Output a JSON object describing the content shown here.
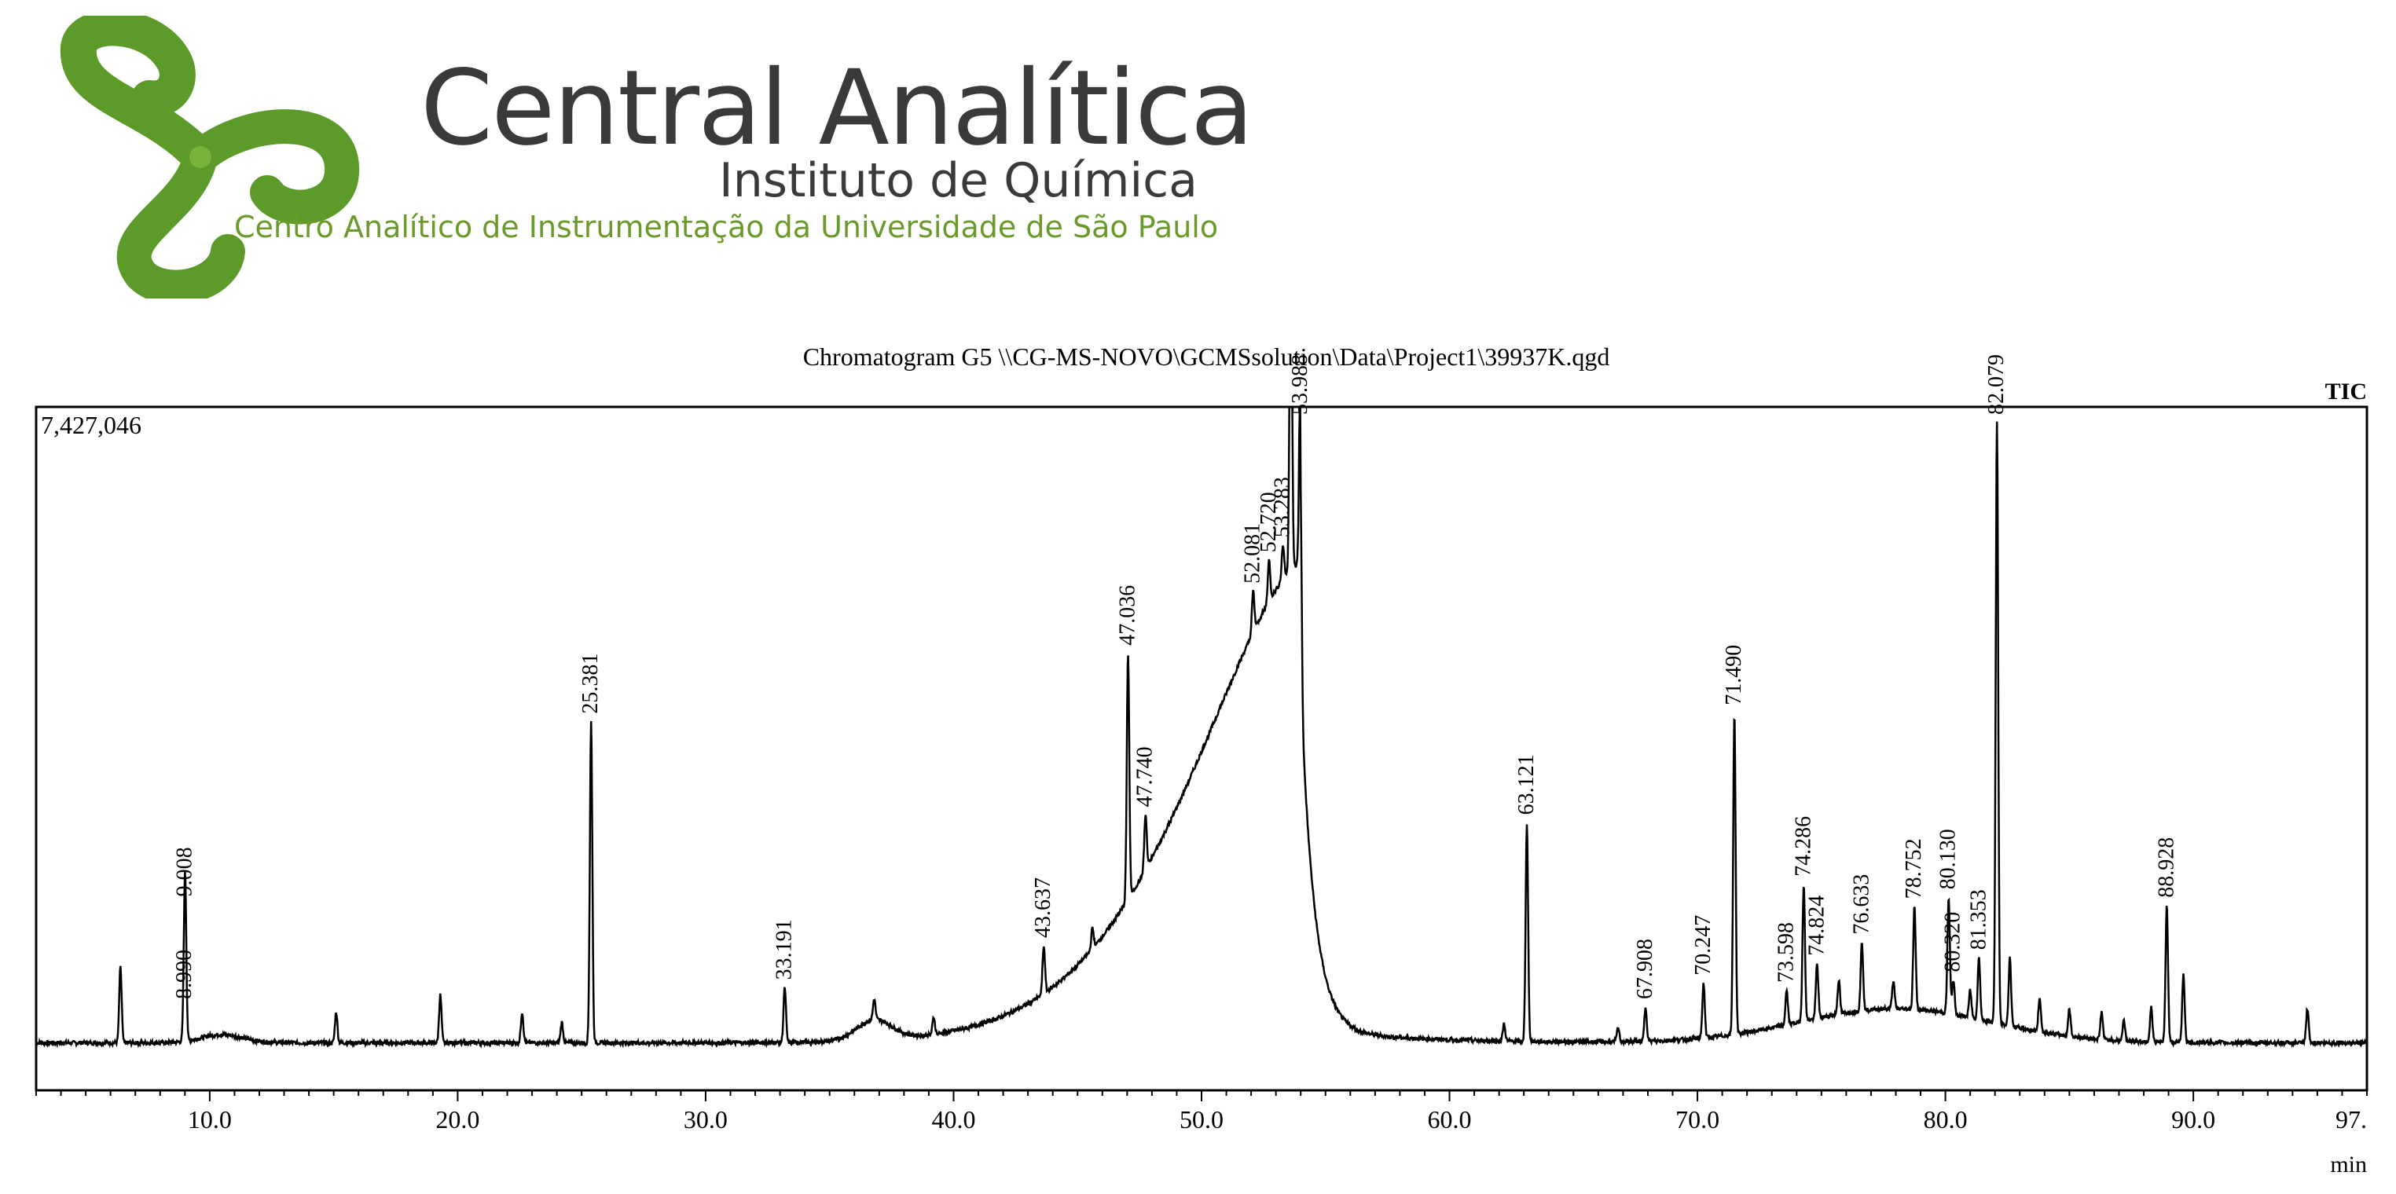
{
  "brand": {
    "name": "Central Analítica",
    "institute": "Instituto de Química",
    "tagline": "Centro Analítico de Instrumentação da Universidade de São Paulo",
    "color_green": "#5c9a2a",
    "color_text": "#3a3a3a"
  },
  "chart_data": {
    "type": "line",
    "title": "Chromatogram G5 \\\\CG-MS-NOVO\\GCMSsolution\\Data\\Project1\\39937K.qgd",
    "trace_label": "TIC",
    "max_intensity_label": "7,427,046",
    "xlabel": "min",
    "xlim": [
      3,
      97
    ],
    "ylim": [
      0,
      7427046
    ],
    "x_ticks": [
      {
        "value": 10,
        "label": "10.0"
      },
      {
        "value": 20,
        "label": "20.0"
      },
      {
        "value": 30,
        "label": "30.0"
      },
      {
        "value": 40,
        "label": "40.0"
      },
      {
        "value": 50,
        "label": "50.0"
      },
      {
        "value": 60,
        "label": "60.0"
      },
      {
        "value": 70,
        "label": "70.0"
      },
      {
        "value": 80,
        "label": "80.0"
      },
      {
        "value": 90,
        "label": "90.0"
      },
      {
        "value": 97,
        "label": "97."
      }
    ],
    "peaks": [
      {
        "rt": 6.4,
        "label": "",
        "height": 0.11
      },
      {
        "rt": 8.99,
        "label": "8.990",
        "height": 0.05
      },
      {
        "rt": 9.008,
        "label": "9.008",
        "height": 0.2
      },
      {
        "rt": 15.1,
        "label": "",
        "height": 0.045
      },
      {
        "rt": 19.3,
        "label": "",
        "height": 0.07
      },
      {
        "rt": 22.6,
        "label": "",
        "height": 0.045
      },
      {
        "rt": 24.2,
        "label": "",
        "height": 0.03
      },
      {
        "rt": 25.381,
        "label": "25.381",
        "height": 0.47
      },
      {
        "rt": 33.191,
        "label": "33.191",
        "height": 0.08
      },
      {
        "rt": 36.8,
        "label": "",
        "height": 0.03
      },
      {
        "rt": 39.2,
        "label": "",
        "height": 0.025
      },
      {
        "rt": 43.637,
        "label": "43.637",
        "height": 0.07
      },
      {
        "rt": 45.6,
        "label": "",
        "height": 0.03
      },
      {
        "rt": 47.036,
        "label": "47.036",
        "height": 0.36
      },
      {
        "rt": 47.74,
        "label": "47.740",
        "height": 0.08
      },
      {
        "rt": 52.081,
        "label": "52.081",
        "height": 0.06
      },
      {
        "rt": 52.72,
        "label": "52.720",
        "height": 0.06
      },
      {
        "rt": 53.283,
        "label": "53.283",
        "height": 0.05
      },
      {
        "rt": 53.6,
        "label": "",
        "height": 0.55
      },
      {
        "rt": 53.988,
        "label": "53.988",
        "height": 0.3
      },
      {
        "rt": 62.2,
        "label": "",
        "height": 0.025
      },
      {
        "rt": 63.121,
        "label": "63.121",
        "height": 0.32
      },
      {
        "rt": 66.8,
        "label": "",
        "height": 0.02
      },
      {
        "rt": 67.908,
        "label": "67.908",
        "height": 0.05
      },
      {
        "rt": 70.247,
        "label": "70.247",
        "height": 0.08
      },
      {
        "rt": 71.49,
        "label": "71.490",
        "height": 0.47
      },
      {
        "rt": 73.598,
        "label": "73.598",
        "height": 0.05
      },
      {
        "rt": 74.286,
        "label": "74.286",
        "height": 0.2
      },
      {
        "rt": 74.824,
        "label": "74.824",
        "height": 0.08
      },
      {
        "rt": 75.7,
        "label": "",
        "height": 0.05
      },
      {
        "rt": 76.633,
        "label": "76.633",
        "height": 0.1
      },
      {
        "rt": 77.9,
        "label": "",
        "height": 0.04
      },
      {
        "rt": 78.752,
        "label": "78.752",
        "height": 0.15
      },
      {
        "rt": 80.13,
        "label": "80.130",
        "height": 0.17
      },
      {
        "rt": 80.32,
        "label": "80.320",
        "height": 0.05
      },
      {
        "rt": 81.0,
        "label": "",
        "height": 0.04
      },
      {
        "rt": 81.353,
        "label": "81.353",
        "height": 0.09
      },
      {
        "rt": 82.079,
        "label": "82.079",
        "height": 0.88
      },
      {
        "rt": 82.6,
        "label": "",
        "height": 0.1
      },
      {
        "rt": 83.8,
        "label": "",
        "height": 0.05
      },
      {
        "rt": 85.0,
        "label": "",
        "height": 0.04
      },
      {
        "rt": 86.3,
        "label": "",
        "height": 0.04
      },
      {
        "rt": 87.2,
        "label": "",
        "height": 0.03
      },
      {
        "rt": 88.3,
        "label": "",
        "height": 0.05
      },
      {
        "rt": 88.928,
        "label": "88.928",
        "height": 0.2
      },
      {
        "rt": 89.6,
        "label": "",
        "height": 0.1
      },
      {
        "rt": 94.6,
        "label": "",
        "height": 0.05
      }
    ]
  }
}
